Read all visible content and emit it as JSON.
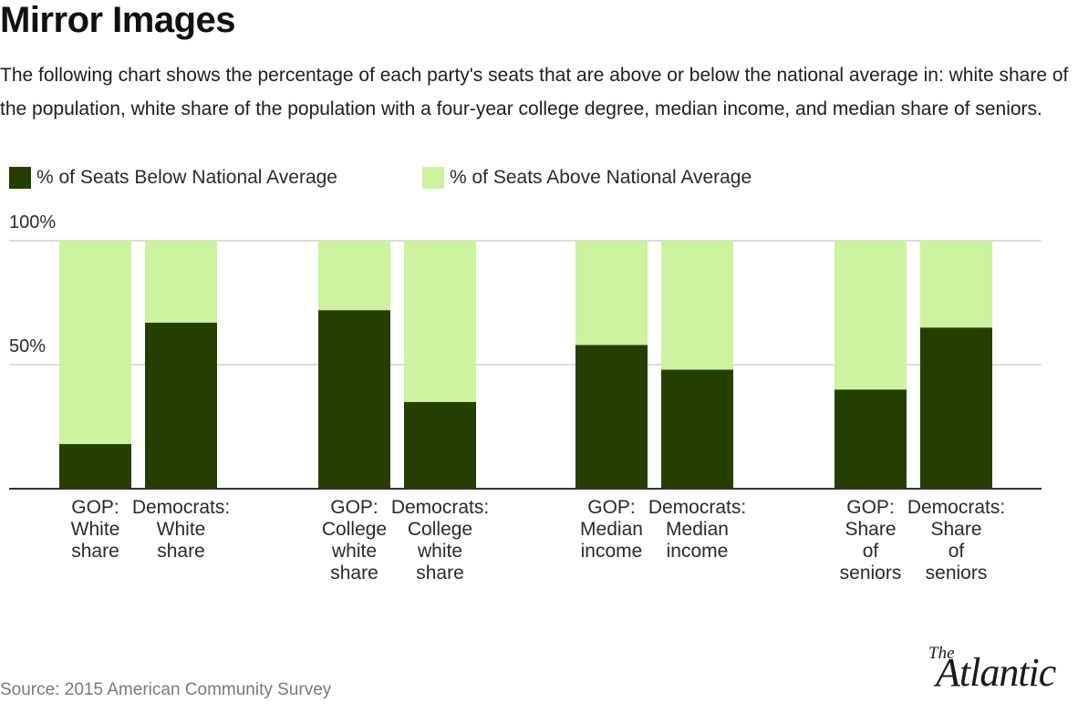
{
  "title": "Mirror Images",
  "subtitle": "The following chart shows the percentage of each party's seats that are above or below the national average in: white share of the population, white share of the population with a four-year college degree, median income, and median share of seniors.",
  "legend": {
    "below": "% of Seats Below National Average",
    "above": "% of Seats Above National Average"
  },
  "colors": {
    "below": "#253f00",
    "above": "#cdf2a0",
    "grid": "#d0d0d0",
    "axis": "#333333"
  },
  "source": "Source: 2015 American Community Survey",
  "logo": {
    "the": "The",
    "name": "Atlantic"
  },
  "chart_data": {
    "type": "bar",
    "stacked": true,
    "title": "Mirror Images",
    "xlabel": "",
    "ylabel": "",
    "ylim": [
      0,
      100
    ],
    "yticks": [
      {
        "value": 50,
        "label": "50%"
      },
      {
        "value": 100,
        "label": "100%"
      }
    ],
    "grid": true,
    "legend_position": "top-left",
    "categories": [
      "GOP: White share",
      "Democrats: White share",
      "GOP: College white share",
      "Democrats: College white share",
      "GOP: Median income",
      "Democrats: Median income",
      "GOP: Share of seniors",
      "Democrats: Share of seniors"
    ],
    "category_label_lines": [
      [
        "GOP:",
        "White",
        "share"
      ],
      [
        "Democrats:",
        "White",
        "share"
      ],
      [
        "GOP:",
        "College",
        "white",
        "share"
      ],
      [
        "Democrats:",
        "College",
        "white",
        "share"
      ],
      [
        "GOP:",
        "Median",
        "income"
      ],
      [
        "Democrats:",
        "Median",
        "income"
      ],
      [
        "GOP:",
        "Share",
        "of",
        "seniors"
      ],
      [
        "Democrats:",
        "Share",
        "of",
        "seniors"
      ]
    ],
    "series": [
      {
        "name": "% of Seats Below National Average",
        "values": [
          18,
          67,
          72,
          35,
          58,
          48,
          40,
          65
        ]
      },
      {
        "name": "% of Seats Above National Average",
        "values": [
          82,
          33,
          28,
          65,
          42,
          52,
          60,
          35
        ]
      }
    ]
  }
}
